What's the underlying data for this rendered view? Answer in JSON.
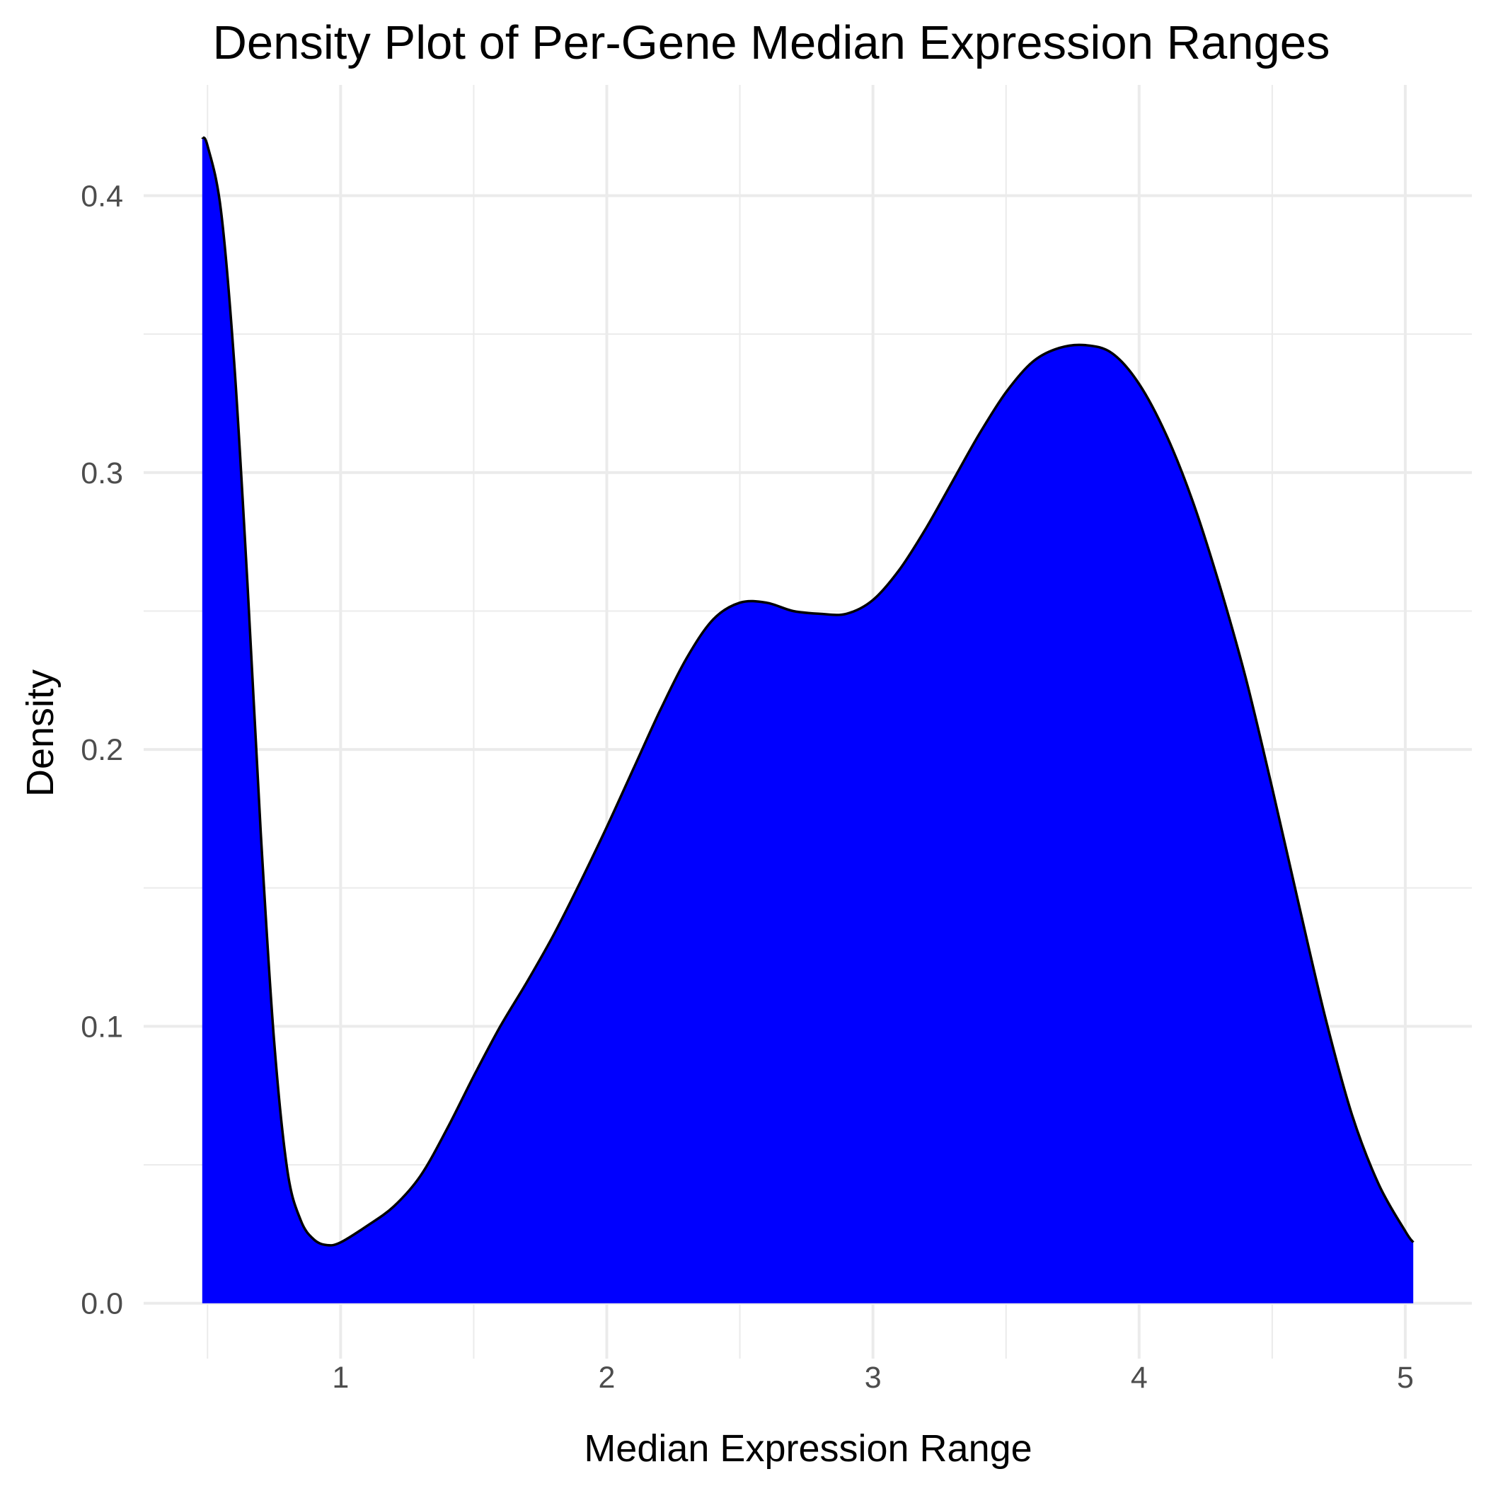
{
  "chart_data": {
    "type": "area",
    "title": "Density Plot of Per-Gene Median Expression Ranges",
    "xlabel": "Median Expression Range",
    "ylabel": "Density",
    "xlim": [
      0.26,
      5.25
    ],
    "ylim": [
      -0.02,
      0.44
    ],
    "x_ticks": [
      1,
      2,
      3,
      4,
      5
    ],
    "x_tick_labels": [
      "1",
      "2",
      "3",
      "4",
      "5"
    ],
    "x_minor_ticks": [
      0.5,
      1.5,
      2.5,
      3.5,
      4.5
    ],
    "y_ticks": [
      0.0,
      0.1,
      0.2,
      0.3,
      0.4
    ],
    "y_tick_labels": [
      "0.0",
      "0.1",
      "0.2",
      "0.3",
      "0.4"
    ],
    "y_minor_ticks": [
      0.05,
      0.15,
      0.25,
      0.35
    ],
    "grid": true,
    "legend": "none",
    "fill_color": "#0000ff",
    "line_color": "#000000",
    "series": [
      {
        "x": [
          0.48,
          0.5,
          0.55,
          0.6,
          0.65,
          0.7,
          0.75,
          0.8,
          0.85,
          0.9,
          0.95,
          1.0,
          1.1,
          1.2,
          1.3,
          1.4,
          1.5,
          1.6,
          1.7,
          1.8,
          1.9,
          2.0,
          2.1,
          2.2,
          2.3,
          2.4,
          2.5,
          2.6,
          2.7,
          2.8,
          2.9,
          3.0,
          3.1,
          3.2,
          3.3,
          3.4,
          3.5,
          3.6,
          3.7,
          3.8,
          3.9,
          4.0,
          4.1,
          4.2,
          4.3,
          4.4,
          4.5,
          4.6,
          4.7,
          4.8,
          4.9,
          5.0,
          5.03
        ],
        "y": [
          0.421,
          0.418,
          0.395,
          0.34,
          0.26,
          0.17,
          0.095,
          0.048,
          0.03,
          0.023,
          0.021,
          0.022,
          0.028,
          0.035,
          0.046,
          0.063,
          0.082,
          0.1,
          0.116,
          0.133,
          0.152,
          0.172,
          0.193,
          0.214,
          0.233,
          0.247,
          0.253,
          0.253,
          0.25,
          0.249,
          0.249,
          0.254,
          0.265,
          0.28,
          0.297,
          0.314,
          0.329,
          0.34,
          0.345,
          0.346,
          0.343,
          0.332,
          0.314,
          0.29,
          0.26,
          0.226,
          0.186,
          0.144,
          0.103,
          0.068,
          0.043,
          0.026,
          0.022
        ]
      }
    ]
  }
}
